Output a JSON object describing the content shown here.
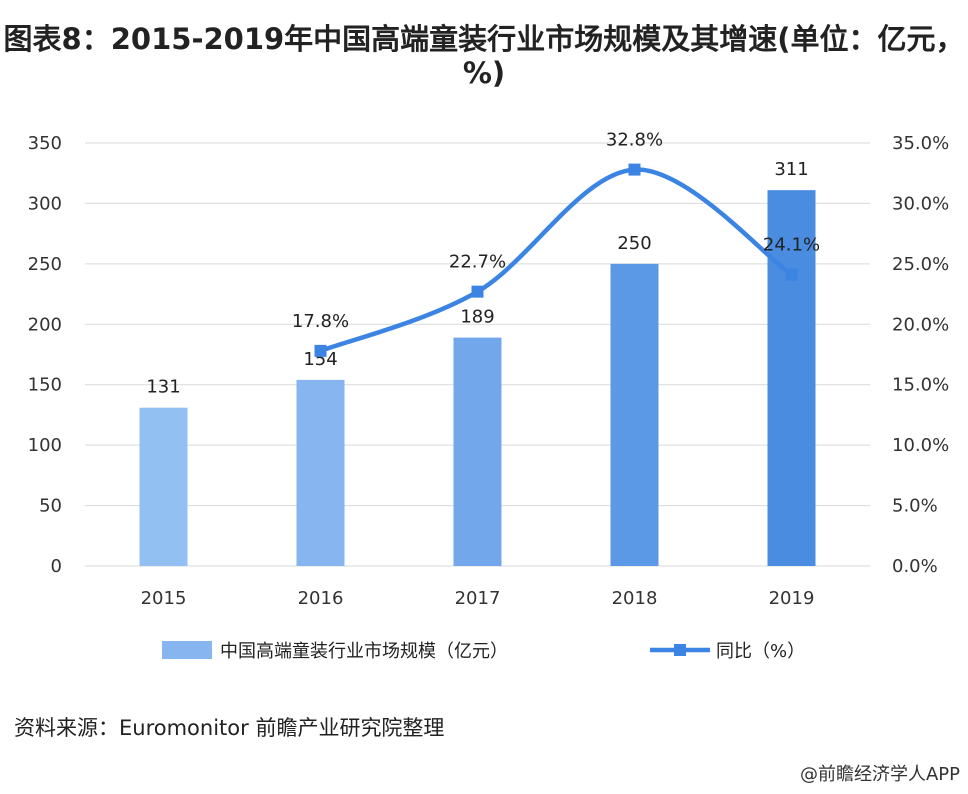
{
  "chart_data": {
    "type": "bar+line",
    "title": "图表8：2015-2019年中国高端童装行业市场规模及其增速(单位：亿元，%)",
    "categories": [
      "2015",
      "2016",
      "2017",
      "2018",
      "2019"
    ],
    "series": [
      {
        "name": "中国高端童装行业市场规模（亿元）",
        "type": "bar",
        "axis": "left",
        "values": [
          131,
          154,
          189,
          250,
          311
        ],
        "colors": [
          "#93c0f2",
          "#86b5ef",
          "#72a7ec",
          "#5b98e6",
          "#4a8cdf"
        ]
      },
      {
        "name": "同比（%）",
        "type": "line",
        "axis": "right",
        "values": [
          null,
          17.8,
          22.7,
          32.8,
          24.1
        ],
        "color": "#3b84e3"
      }
    ],
    "left_axis": {
      "range": [
        0,
        350
      ],
      "ticks": [
        "0",
        "50",
        "100",
        "150",
        "200",
        "250",
        "300",
        "350"
      ]
    },
    "right_axis": {
      "range": [
        0,
        35
      ],
      "ticks": [
        "0.0%",
        "5.0%",
        "10.0%",
        "15.0%",
        "20.0%",
        "25.0%",
        "30.0%",
        "35.0%"
      ]
    },
    "bar_labels": [
      "131",
      "154",
      "189",
      "250",
      "311"
    ],
    "line_labels": [
      "",
      "17.8%",
      "22.7%",
      "32.8%",
      "24.1%"
    ],
    "grid": true,
    "legend_placement": "bottom",
    "gridline_color": "#d9d9d9"
  },
  "source": "资料来源：Euromonitor 前瞻产业研究院整理",
  "credit": "@前瞻经济学人APP"
}
